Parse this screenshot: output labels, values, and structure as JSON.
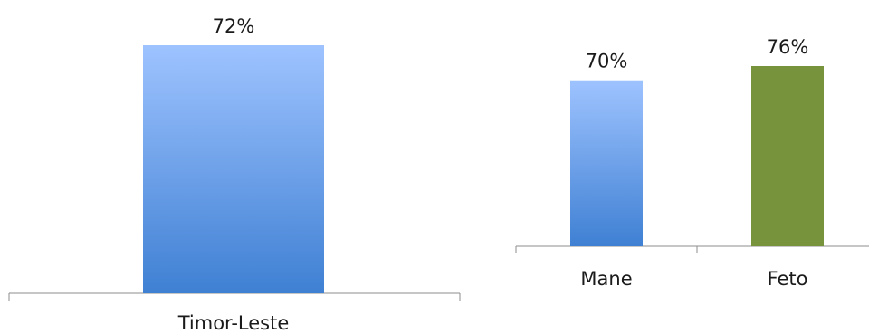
{
  "chart_data": [
    {
      "type": "bar",
      "categories": [
        "Timor-Leste"
      ],
      "values": [
        72
      ],
      "value_labels": [
        "72%"
      ],
      "ylim": [
        0,
        80
      ],
      "grid": false,
      "legend": "none",
      "bar_color_top": "#9ec3ff",
      "bar_color_bottom": "#3f80d3"
    },
    {
      "type": "bar",
      "categories": [
        "Mane",
        "Feto"
      ],
      "values": [
        70,
        76
      ],
      "value_labels": [
        "70%",
        "76%"
      ],
      "ylim": [
        0,
        80
      ],
      "grid": false,
      "legend": "none",
      "bar_colors": [
        "gradient-blue",
        "#77933c"
      ],
      "bar_color_top": "#9ec3ff",
      "bar_color_bottom": "#3f80d3"
    }
  ]
}
